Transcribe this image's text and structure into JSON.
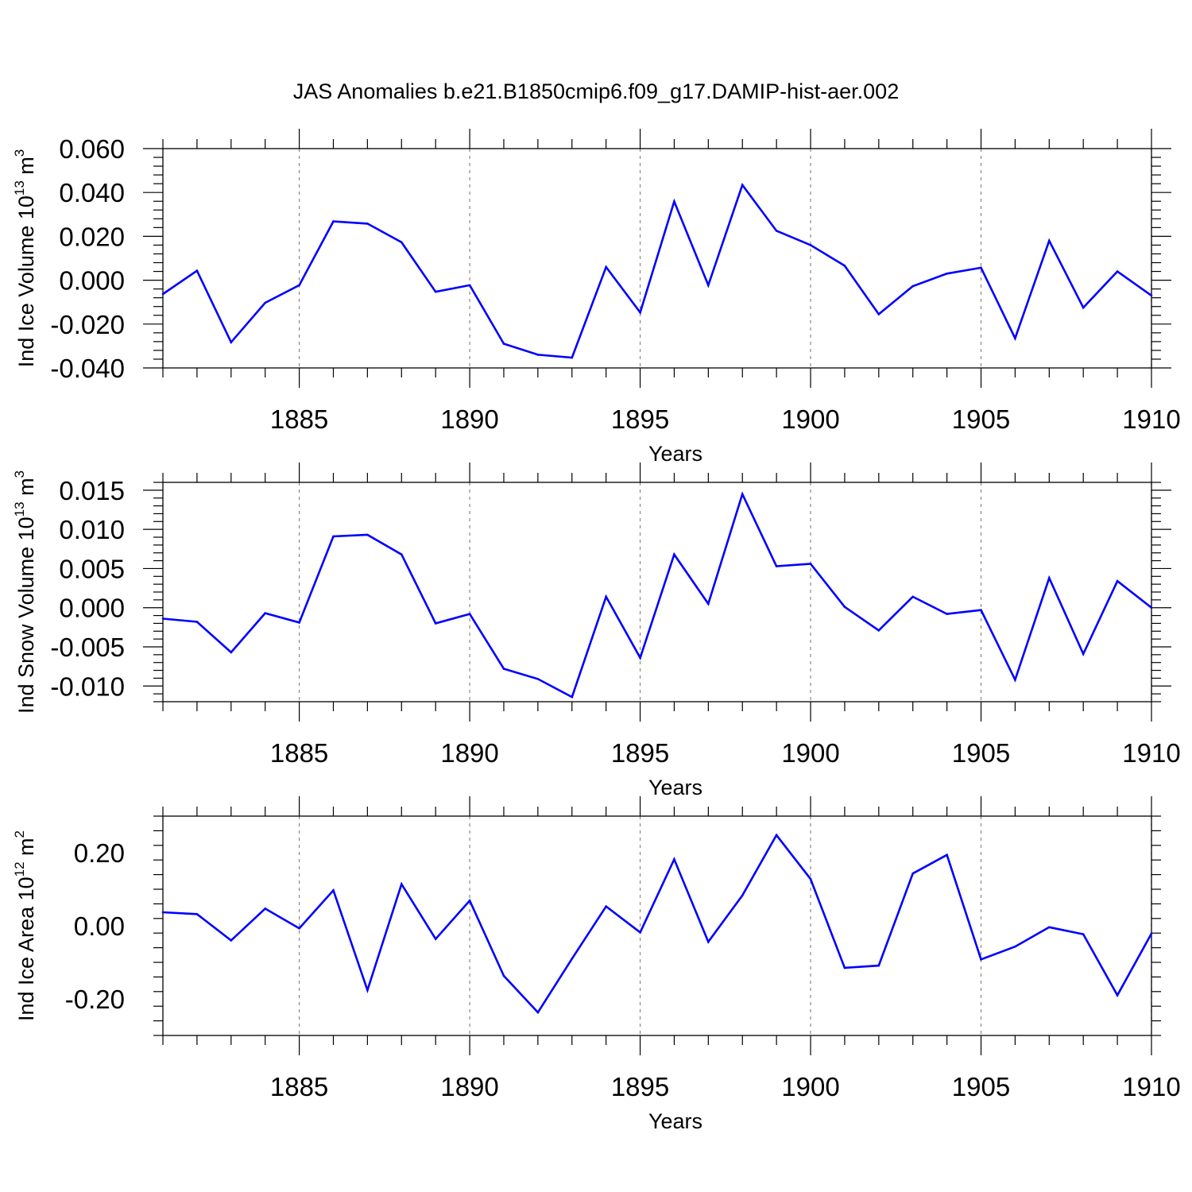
{
  "title": "JAS Anomalies b.e21.B1850cmip6.f09_g17.DAMIP-hist-aer.002",
  "colors": {
    "line": "#0000ff",
    "axis": "#000000",
    "grid": "#888888"
  },
  "chart_data": [
    {
      "type": "line",
      "title": "JAS Anomalies b.e21.B1850cmip6.f09_g17.DAMIP-hist-aer.002",
      "xlabel": "Years",
      "ylabel_text": "Ind Ice Volume 10",
      "ylabel_exp": "13",
      "ylabel_unit": " m",
      "ylabel_unit_exp": "3",
      "xlim": [
        1881,
        1910
      ],
      "ylim": [
        -0.04,
        0.06
      ],
      "grid": "vertical dashed at major x ticks",
      "x_ticks": [
        1885,
        1890,
        1895,
        1900,
        1905,
        1910
      ],
      "x_tick_labels": [
        "1885",
        "1890",
        "1895",
        "1900",
        "1905",
        "1910"
      ],
      "y_ticks": [
        -0.04,
        -0.02,
        0.0,
        0.02,
        0.04,
        0.06
      ],
      "y_tick_labels": [
        "-0.040",
        "-0.020",
        "0.000",
        "0.020",
        "0.040",
        "0.060"
      ],
      "x": [
        1881,
        1882,
        1883,
        1884,
        1885,
        1886,
        1887,
        1888,
        1889,
        1890,
        1891,
        1892,
        1893,
        1894,
        1895,
        1896,
        1897,
        1898,
        1899,
        1900,
        1901,
        1902,
        1903,
        1904,
        1905,
        1906,
        1907,
        1908,
        1909,
        1910
      ],
      "values": [
        -0.0063,
        0.0043,
        -0.0283,
        -0.0103,
        -0.0023,
        0.0268,
        0.0258,
        0.0173,
        -0.0053,
        -0.0023,
        -0.029,
        -0.034,
        -0.0353,
        0.006,
        -0.0147,
        0.0359,
        -0.0023,
        0.0434,
        0.0225,
        0.016,
        0.0066,
        -0.0155,
        -0.0027,
        0.003,
        0.0057,
        -0.0265,
        0.018,
        -0.0125,
        0.004,
        -0.007
      ]
    },
    {
      "type": "line",
      "xlabel": "Years",
      "ylabel_text": "Ind Snow Volume 10",
      "ylabel_exp": "13",
      "ylabel_unit": " m",
      "ylabel_unit_exp": "3",
      "xlim": [
        1881,
        1910
      ],
      "ylim": [
        -0.012,
        0.016
      ],
      "grid": "vertical dashed at major x ticks",
      "x_ticks": [
        1885,
        1890,
        1895,
        1900,
        1905,
        1910
      ],
      "x_tick_labels": [
        "1885",
        "1890",
        "1895",
        "1900",
        "1905",
        "1910"
      ],
      "y_ticks": [
        -0.01,
        -0.005,
        0.0,
        0.005,
        0.01,
        0.015
      ],
      "y_tick_labels": [
        "-0.010",
        "-0.005",
        "0.000",
        "0.005",
        "0.010",
        "0.015"
      ],
      "x": [
        1881,
        1882,
        1883,
        1884,
        1885,
        1886,
        1887,
        1888,
        1889,
        1890,
        1891,
        1892,
        1893,
        1894,
        1895,
        1896,
        1897,
        1898,
        1899,
        1900,
        1901,
        1902,
        1903,
        1904,
        1905,
        1906,
        1907,
        1908,
        1909,
        1910
      ],
      "values": [
        -0.0014,
        -0.0018,
        -0.0057,
        -0.0007,
        -0.0019,
        0.0091,
        0.0093,
        0.0068,
        -0.002,
        -0.0008,
        -0.0078,
        -0.0091,
        -0.0114,
        0.0014,
        -0.0064,
        0.0068,
        0.0005,
        0.0145,
        0.0053,
        0.0056,
        0.0001,
        -0.0029,
        0.0014,
        -0.0008,
        -0.0003,
        -0.0092,
        0.0038,
        -0.0059,
        0.0034,
        0.0
      ]
    },
    {
      "type": "line",
      "xlabel": "Years",
      "ylabel_text": "Ind Ice Area 10",
      "ylabel_exp": "12",
      "ylabel_unit": " m",
      "ylabel_unit_exp": "2",
      "xlim": [
        1881,
        1910
      ],
      "ylim": [
        -0.3,
        0.3
      ],
      "grid": "vertical dashed at major x ticks",
      "x_ticks": [
        1885,
        1890,
        1895,
        1900,
        1905,
        1910
      ],
      "x_tick_labels": [
        "1885",
        "1890",
        "1895",
        "1900",
        "1905",
        "1910"
      ],
      "y_ticks": [
        -0.2,
        0.0,
        0.2
      ],
      "y_tick_labels": [
        "-0.20",
        "0.00",
        "0.20"
      ],
      "x": [
        1881,
        1882,
        1883,
        1884,
        1885,
        1886,
        1887,
        1888,
        1889,
        1890,
        1891,
        1892,
        1893,
        1894,
        1895,
        1896,
        1897,
        1898,
        1899,
        1900,
        1901,
        1902,
        1903,
        1904,
        1905,
        1906,
        1907,
        1908,
        1909,
        1910
      ],
      "values": [
        0.037,
        0.032,
        -0.04,
        0.047,
        -0.007,
        0.097,
        -0.176,
        0.114,
        -0.036,
        0.069,
        -0.137,
        -0.237,
        -0.09,
        0.053,
        -0.018,
        0.182,
        -0.044,
        0.083,
        0.248,
        0.128,
        -0.115,
        -0.109,
        0.143,
        0.194,
        -0.092,
        -0.057,
        -0.004,
        -0.023,
        -0.19,
        -0.021
      ]
    }
  ]
}
